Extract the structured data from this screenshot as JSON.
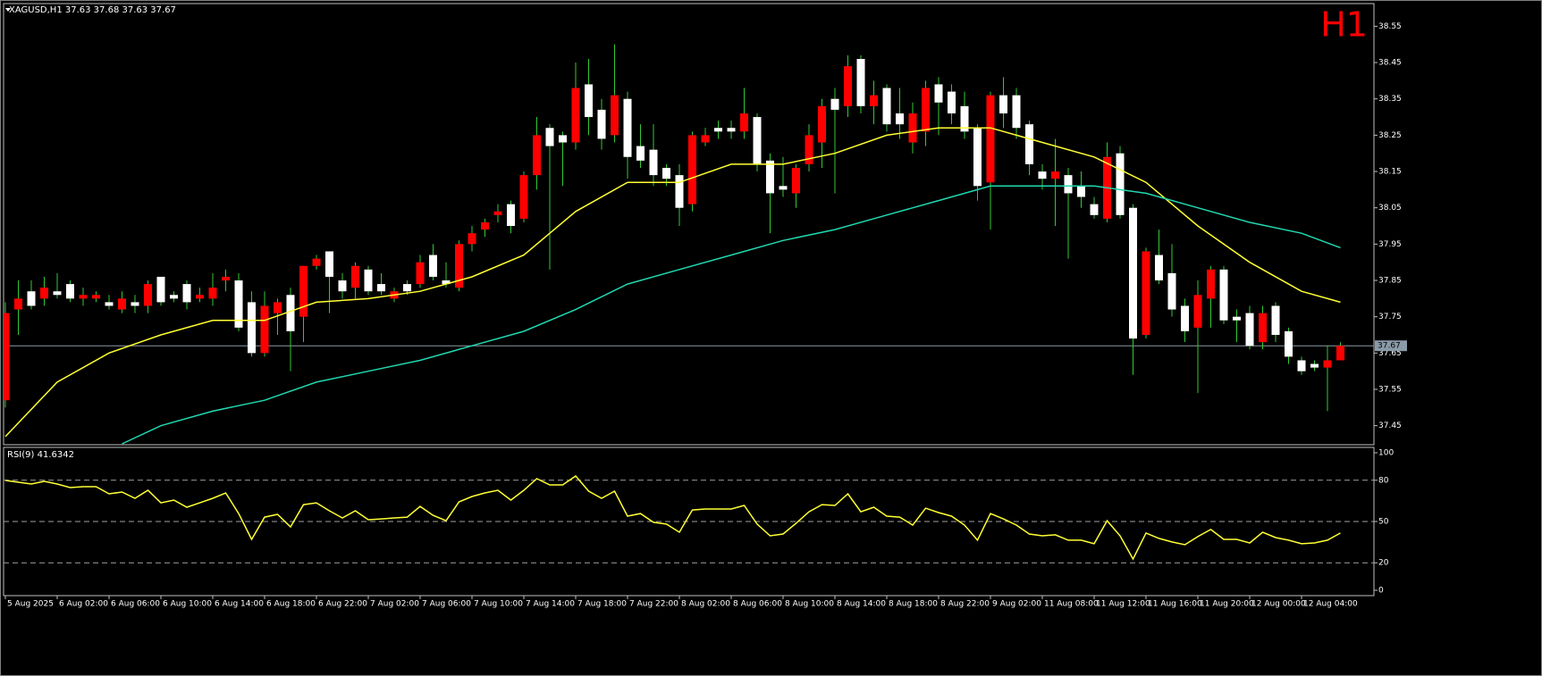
{
  "chart_data": [
    {
      "type": "candlestick",
      "title": "XAGUSD,H1  37.63 37.68 37.63 37.67",
      "timeframe": "H1",
      "categories": [
        "5 Aug 2025",
        null,
        null,
        null,
        "6 Aug 02:00",
        null,
        null,
        null,
        "6 Aug 06:00",
        null,
        null,
        null,
        "6 Aug 10:00",
        null,
        null,
        null,
        "6 Aug 14:00",
        null,
        null,
        null,
        "6 Aug 18:00",
        null,
        null,
        null,
        "6 Aug 22:00",
        null,
        null,
        null,
        "7 Aug 02:00",
        null,
        null,
        null,
        "7 Aug 06:00",
        null,
        null,
        null,
        "7 Aug 10:00",
        null,
        null,
        null,
        "7 Aug 14:00",
        null,
        null,
        null,
        "7 Aug 18:00",
        null,
        null,
        null,
        "7 Aug 22:00",
        null,
        null,
        null,
        "8 Aug 02:00",
        null,
        null,
        null,
        "8 Aug 06:00",
        null,
        null,
        null,
        "8 Aug 10:00",
        null,
        null,
        null,
        "8 Aug 14:00",
        null,
        null,
        null,
        "8 Aug 18:00",
        null,
        null,
        null,
        "8 Aug 22:00",
        null,
        null,
        null,
        "9 Aug 02:00",
        null,
        null,
        null,
        "11 Aug 08:00",
        null,
        null,
        null,
        "11 Aug 12:00",
        null,
        null,
        null,
        "11 Aug 16:00",
        null,
        null,
        null,
        "11 Aug 20:00",
        null,
        null,
        null,
        "12 Aug 00:00",
        null,
        null,
        null,
        "12 Aug 04:00",
        null,
        null,
        null
      ],
      "open": [
        37.52,
        37.77,
        37.82,
        37.8,
        37.82,
        37.84,
        37.8,
        37.8,
        37.79,
        37.77,
        37.79,
        37.78,
        37.86,
        37.81,
        37.84,
        37.8,
        37.8,
        37.85,
        37.85,
        37.79,
        37.65,
        37.76,
        37.81,
        37.75,
        37.89,
        37.93,
        37.85,
        37.83,
        37.88,
        37.84,
        37.8,
        37.84,
        37.84,
        37.92,
        37.85,
        37.83,
        37.95,
        37.99,
        38.03,
        38.06,
        38.02,
        38.14,
        38.27,
        38.25,
        38.23,
        38.39,
        38.32,
        38.25,
        38.35,
        38.22,
        38.21,
        38.16,
        38.14,
        38.06,
        38.23,
        38.27,
        38.27,
        38.26,
        38.3,
        38.18,
        38.11,
        38.09,
        38.17,
        38.23,
        38.35,
        38.33,
        38.46,
        38.33,
        38.38,
        38.31,
        38.23,
        38.26,
        38.39,
        38.37,
        38.33,
        38.27,
        38.12,
        38.36,
        38.36,
        38.28,
        38.15,
        38.13,
        38.14,
        38.11,
        38.06,
        38.02,
        38.2,
        38.05,
        37.7,
        37.92,
        37.87,
        37.78,
        37.72,
        37.8,
        37.88,
        37.75,
        37.76,
        37.68,
        37.78,
        37.71,
        37.63,
        37.62,
        37.61,
        37.63
      ],
      "high": [
        37.79,
        37.85,
        37.85,
        37.86,
        37.87,
        37.85,
        37.83,
        37.82,
        37.81,
        37.82,
        37.81,
        37.85,
        37.86,
        37.82,
        37.85,
        37.83,
        37.87,
        37.88,
        37.87,
        37.82,
        37.82,
        37.8,
        37.83,
        37.89,
        37.92,
        37.93,
        37.87,
        37.9,
        37.89,
        37.87,
        37.83,
        37.85,
        37.92,
        37.95,
        37.9,
        37.96,
        38.0,
        38.02,
        38.06,
        38.07,
        38.15,
        38.3,
        38.28,
        38.26,
        38.45,
        38.46,
        38.35,
        38.5,
        38.37,
        38.28,
        38.28,
        38.17,
        38.17,
        38.26,
        38.27,
        38.29,
        38.29,
        38.38,
        38.31,
        38.2,
        38.19,
        38.17,
        38.28,
        38.35,
        38.38,
        38.47,
        38.47,
        38.4,
        38.39,
        38.38,
        38.34,
        38.4,
        38.41,
        38.39,
        38.37,
        38.28,
        38.37,
        38.41,
        38.38,
        38.29,
        38.17,
        38.24,
        38.16,
        38.15,
        38.08,
        38.23,
        38.22,
        38.06,
        37.94,
        37.99,
        37.95,
        37.8,
        37.85,
        37.89,
        37.89,
        37.77,
        37.78,
        37.78,
        37.79,
        37.72,
        37.64,
        37.63,
        37.67,
        37.68
      ],
      "low": [
        37.5,
        37.7,
        37.77,
        37.78,
        37.8,
        37.79,
        37.78,
        37.79,
        37.77,
        37.76,
        37.76,
        37.76,
        37.78,
        37.79,
        37.77,
        37.79,
        37.78,
        37.82,
        37.71,
        37.64,
        37.64,
        37.7,
        37.6,
        37.68,
        37.88,
        37.76,
        37.8,
        37.8,
        37.81,
        37.81,
        37.79,
        37.81,
        37.83,
        37.85,
        37.83,
        37.82,
        37.93,
        37.97,
        38.01,
        37.98,
        38.01,
        38.1,
        37.88,
        38.11,
        38.21,
        38.25,
        38.21,
        38.23,
        38.13,
        38.16,
        38.11,
        38.11,
        38.0,
        38.04,
        38.22,
        38.24,
        38.24,
        38.24,
        38.15,
        37.98,
        38.08,
        38.05,
        38.15,
        38.16,
        38.09,
        38.3,
        38.31,
        38.28,
        38.26,
        38.24,
        38.2,
        38.22,
        38.25,
        38.28,
        38.24,
        38.07,
        37.99,
        38.27,
        38.24,
        38.14,
        38.1,
        38.0,
        37.91,
        38.05,
        38.02,
        38.01,
        38.02,
        37.59,
        37.69,
        37.84,
        37.75,
        37.68,
        37.54,
        37.72,
        37.73,
        37.68,
        37.66,
        37.66,
        37.68,
        37.62,
        37.59,
        37.6,
        37.49,
        37.63
      ],
      "close": [
        37.76,
        37.8,
        37.78,
        37.83,
        37.81,
        37.8,
        37.81,
        37.81,
        37.78,
        37.8,
        37.78,
        37.84,
        37.79,
        37.8,
        37.79,
        37.81,
        37.83,
        37.86,
        37.72,
        37.65,
        37.78,
        37.79,
        37.71,
        37.89,
        37.91,
        37.86,
        37.82,
        37.89,
        37.82,
        37.82,
        37.82,
        37.82,
        37.9,
        37.86,
        37.84,
        37.95,
        37.98,
        38.01,
        38.04,
        38.0,
        38.14,
        38.25,
        38.22,
        38.23,
        38.38,
        38.3,
        38.24,
        38.36,
        38.19,
        38.18,
        38.14,
        38.13,
        38.05,
        38.25,
        38.25,
        38.26,
        38.26,
        38.31,
        38.17,
        38.09,
        38.1,
        38.16,
        38.25,
        38.33,
        38.32,
        38.44,
        38.33,
        38.36,
        38.28,
        38.28,
        38.31,
        38.38,
        38.34,
        38.31,
        38.26,
        38.11,
        38.36,
        38.31,
        38.27,
        38.17,
        38.13,
        38.15,
        38.09,
        38.08,
        38.03,
        38.19,
        38.03,
        37.69,
        37.93,
        37.85,
        37.77,
        37.71,
        37.81,
        37.88,
        37.74,
        37.74,
        37.67,
        37.76,
        37.7,
        37.64,
        37.6,
        37.61,
        37.63,
        37.67
      ],
      "up_color": "#ff0000",
      "down_color": "#ffffff",
      "wick_color": "#33c833",
      "series": [
        {
          "color": "#ffff33",
          "x": [
            0,
            4,
            8,
            12,
            16,
            20,
            24,
            28,
            32,
            36,
            40,
            44,
            48,
            52,
            56,
            60,
            64,
            68,
            72,
            76,
            80,
            84,
            88,
            92,
            96,
            100,
            103
          ],
          "values": [
            37.42,
            37.57,
            37.65,
            37.7,
            37.74,
            37.74,
            37.79,
            37.8,
            37.82,
            37.86,
            37.92,
            38.04,
            38.12,
            38.12,
            38.17,
            38.17,
            38.2,
            38.25,
            38.27,
            38.27,
            38.23,
            38.19,
            38.12,
            38.0,
            37.9,
            37.82,
            37.79
          ]
        },
        {
          "color": "#20d8b0",
          "x": [
            9,
            12,
            16,
            20,
            24,
            28,
            32,
            36,
            40,
            44,
            48,
            52,
            56,
            60,
            64,
            68,
            72,
            76,
            80,
            84,
            88,
            92,
            96,
            100,
            103
          ],
          "values": [
            37.4,
            37.45,
            37.49,
            37.52,
            37.57,
            37.6,
            37.63,
            37.67,
            37.71,
            37.77,
            37.84,
            37.88,
            37.92,
            37.96,
            37.99,
            38.03,
            38.07,
            38.11,
            38.11,
            38.11,
            38.09,
            38.05,
            38.01,
            37.98,
            37.94
          ]
        }
      ],
      "ylim": [
        37.4,
        38.61
      ],
      "yticks": [
        37.45,
        37.55,
        37.65,
        37.75,
        37.85,
        37.95,
        38.05,
        38.15,
        38.25,
        38.35,
        38.45,
        38.55
      ],
      "current_price": 37.67,
      "current_price_color": "#8a9aa8"
    },
    {
      "type": "line",
      "title": "RSI(9) 41.6342",
      "values": [
        79.9,
        78.6,
        77.3,
        79.2,
        77.3,
        74.7,
        75.3,
        75.3,
        70.1,
        71.4,
        66.9,
        72.7,
        63.6,
        65.6,
        60.4,
        63.6,
        66.9,
        70.8,
        55.8,
        37.0,
        53.2,
        55.2,
        46.1,
        62.3,
        63.6,
        57.8,
        52.6,
        57.8,
        51.3,
        51.9,
        52.6,
        53.2,
        61.0,
        54.5,
        50.6,
        64.3,
        68.2,
        70.8,
        72.7,
        65.6,
        72.7,
        81.2,
        76.6,
        76.6,
        83.1,
        72.1,
        66.9,
        72.1,
        53.9,
        55.8,
        49.4,
        48.1,
        42.2,
        58.4,
        59.1,
        59.1,
        59.1,
        61.7,
        48.1,
        39.6,
        40.9,
        48.7,
        57.1,
        62.3,
        61.7,
        70.1,
        57.1,
        60.4,
        53.9,
        53.2,
        47.4,
        59.7,
        56.5,
        53.9,
        47.4,
        36.4,
        55.8,
        51.9,
        47.4,
        40.9,
        39.6,
        40.3,
        36.4,
        36.4,
        33.8,
        50.6,
        39.6,
        22.7,
        41.6,
        37.7,
        35.1,
        33.1,
        39.0,
        44.2,
        37.0,
        37.0,
        34.4,
        42.2,
        38.3,
        36.4,
        33.8,
        34.4,
        36.4,
        41.6342
      ],
      "color": "#ffff33",
      "ylim": [
        0,
        100
      ],
      "yticks": [
        0,
        20,
        50,
        80,
        100
      ],
      "levels": [
        20,
        50,
        80
      ],
      "level_color": "#a0a0a0"
    }
  ]
}
